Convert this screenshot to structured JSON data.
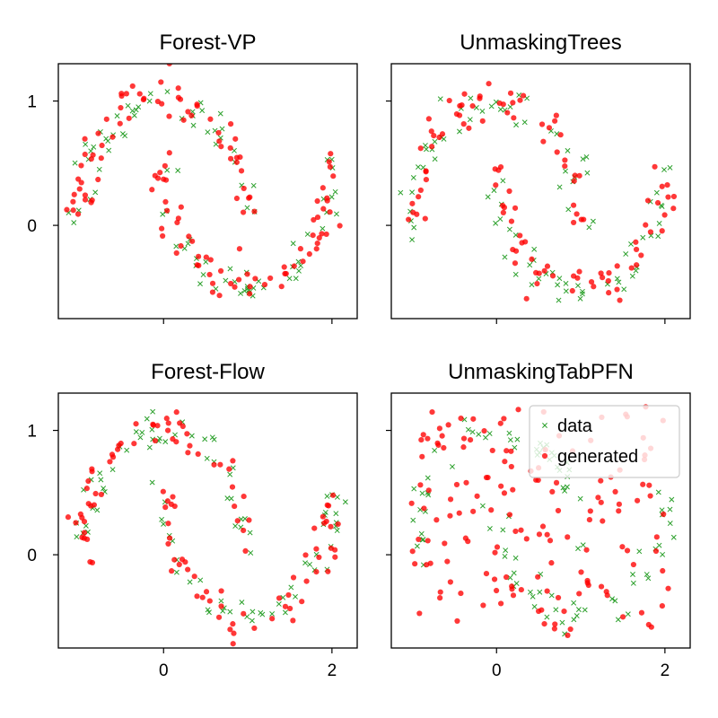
{
  "chart_data": [
    {
      "type": "scatter",
      "title": "Forest-VP",
      "xlim": [
        -1.25,
        2.3
      ],
      "ylim": [
        -0.75,
        1.3
      ],
      "x_ticks": [
        0,
        2
      ],
      "y_ticks": [
        0,
        1
      ],
      "x_tick_labels_shown": false,
      "y_tick_labels_shown": true,
      "series": [
        {
          "name": "data",
          "marker": "x",
          "color": "#2ca02c",
          "points": "moons",
          "n": 90
        },
        {
          "name": "generated",
          "marker": "o",
          "color": "#ff0000",
          "points": "moons",
          "n": 130
        }
      ]
    },
    {
      "type": "scatter",
      "title": "UnmaskingTrees",
      "xlim": [
        -1.25,
        2.3
      ],
      "ylim": [
        -0.75,
        1.3
      ],
      "x_ticks": [
        0,
        2
      ],
      "y_ticks": [
        0,
        1
      ],
      "x_tick_labels_shown": false,
      "y_tick_labels_shown": false,
      "series": [
        {
          "name": "data",
          "marker": "x",
          "color": "#2ca02c",
          "points": "moons",
          "n": 90
        },
        {
          "name": "generated",
          "marker": "o",
          "color": "#ff0000",
          "points": "moons",
          "n": 110
        }
      ]
    },
    {
      "type": "scatter",
      "title": "Forest-Flow",
      "xlim": [
        -1.25,
        2.3
      ],
      "ylim": [
        -0.75,
        1.3
      ],
      "x_ticks": [
        0,
        2
      ],
      "y_ticks": [
        0,
        1
      ],
      "x_tick_labels_shown": true,
      "y_tick_labels_shown": true,
      "series": [
        {
          "name": "data",
          "marker": "x",
          "color": "#2ca02c",
          "points": "moons",
          "n": 90
        },
        {
          "name": "generated",
          "marker": "o",
          "color": "#ff0000",
          "points": "moons",
          "n": 110
        }
      ]
    },
    {
      "type": "scatter",
      "title": "UnmaskingTabPFN",
      "xlim": [
        -1.25,
        2.3
      ],
      "ylim": [
        -0.75,
        1.3
      ],
      "x_ticks": [
        0,
        2
      ],
      "y_ticks": [
        0,
        1
      ],
      "x_tick_labels_shown": true,
      "y_tick_labels_shown": false,
      "legend": {
        "position": "upper right",
        "entries": [
          "data",
          "generated"
        ]
      },
      "series": [
        {
          "name": "data",
          "marker": "x",
          "color": "#2ca02c",
          "points": "moons",
          "n": 90
        },
        {
          "name": "generated",
          "marker": "o",
          "color": "#ff0000",
          "points": "diffuse",
          "n": 150
        }
      ]
    }
  ],
  "tick_text": {
    "x0": "0",
    "x2": "2",
    "y0": "0",
    "y1": "1"
  },
  "colors": {
    "data": "#2ca02c",
    "generated": "#ff0000",
    "frame": "#000000"
  }
}
